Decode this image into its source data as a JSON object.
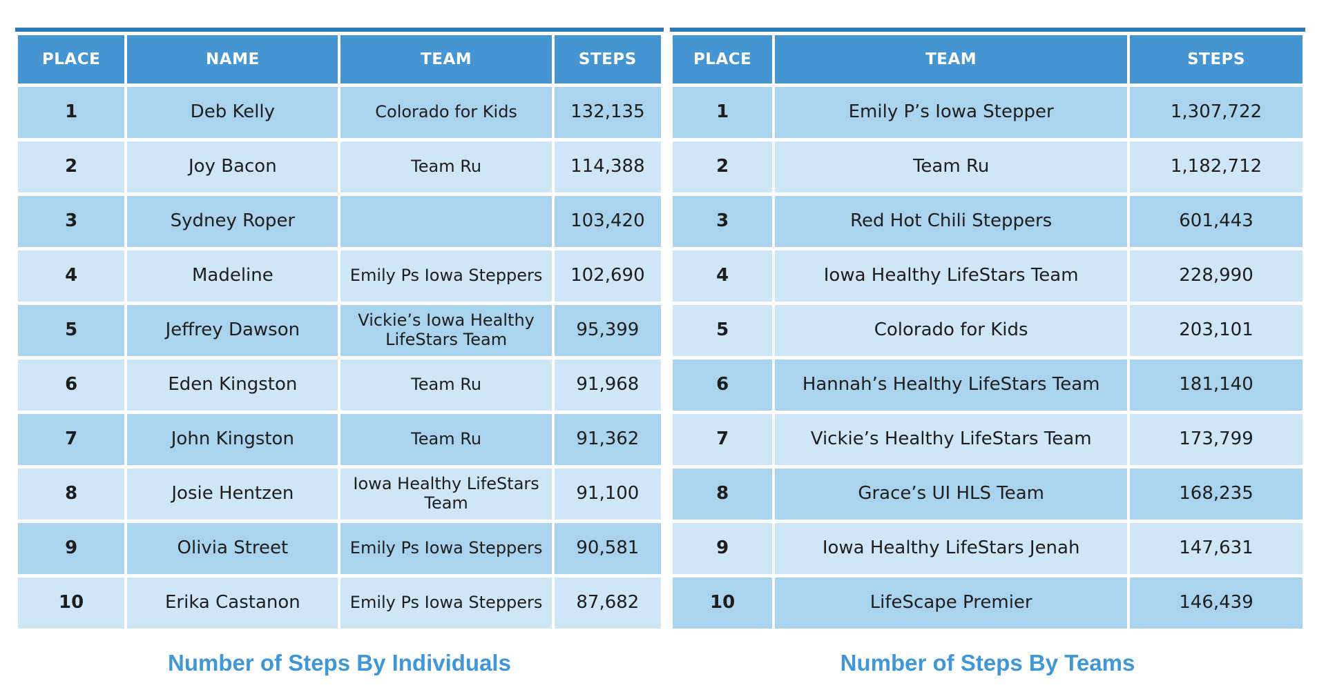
{
  "colors": {
    "header_blue": "#4495d1",
    "header_top_border": "#2d7ab4",
    "row_dark": "#aad3ed",
    "row_light": "#cfe6f6",
    "place_red": "#da3228",
    "body_text": "#1d1d1d",
    "caption_blue": "#3f97d7",
    "grid_gap": "#ffffff"
  },
  "tables": [
    {
      "id": "individuals",
      "caption": "Number of Steps By Individuals",
      "columns": [
        "PLACE",
        "NAME",
        "TEAM",
        "STEPS"
      ],
      "cell_names": [
        "place-cell",
        "name-cell",
        "team-cell",
        "steps-cell"
      ],
      "rows": [
        {
          "shade": "dark",
          "cells": [
            "1",
            "Deb Kelly",
            "Colorado for Kids",
            "132,135"
          ]
        },
        {
          "shade": "light",
          "cells": [
            "2",
            "Joy Bacon",
            "Team Ru",
            "114,388"
          ]
        },
        {
          "shade": "dark",
          "cells": [
            "3",
            "Sydney Roper",
            "",
            "103,420"
          ]
        },
        {
          "shade": "light",
          "cells": [
            "4",
            "Madeline",
            "Emily Ps Iowa Steppers",
            "102,690"
          ]
        },
        {
          "shade": "dark",
          "cells": [
            "5",
            "Jeffrey Dawson",
            "Vickie’s Iowa Healthy LifeStars Team",
            "95,399"
          ]
        },
        {
          "shade": "light",
          "cells": [
            "6",
            "Eden Kingston",
            "Team Ru",
            "91,968"
          ]
        },
        {
          "shade": "dark",
          "cells": [
            "7",
            "John Kingston",
            "Team Ru",
            "91,362"
          ]
        },
        {
          "shade": "light",
          "cells": [
            "8",
            "Josie Hentzen",
            "Iowa Healthy LifeStars Team",
            "91,100"
          ]
        },
        {
          "shade": "dark",
          "cells": [
            "9",
            "Olivia Street",
            "Emily Ps Iowa Steppers",
            "90,581"
          ]
        },
        {
          "shade": "light",
          "cells": [
            "10",
            "Erika Castanon",
            "Emily Ps Iowa Steppers",
            "87,682"
          ]
        }
      ]
    },
    {
      "id": "teams",
      "caption": "Number of Steps By Teams",
      "columns": [
        "PLACE",
        "TEAM",
        "STEPS"
      ],
      "cell_names": [
        "place-cell",
        "team-cell",
        "steps-cell"
      ],
      "rows": [
        {
          "shade": "dark",
          "cells": [
            "1",
            "Emily P’s Iowa Stepper",
            "1,307,722"
          ]
        },
        {
          "shade": "light",
          "cells": [
            "2",
            "Team Ru",
            "1,182,712"
          ]
        },
        {
          "shade": "dark",
          "cells": [
            "3",
            "Red Hot Chili Steppers",
            "601,443"
          ]
        },
        {
          "shade": "light",
          "cells": [
            "4",
            "Iowa Healthy LifeStars Team",
            "228,990"
          ]
        },
        {
          "shade": "light",
          "cells": [
            "5",
            "Colorado for Kids",
            "203,101"
          ]
        },
        {
          "shade": "dark",
          "cells": [
            "6",
            "Hannah’s Healthy LifeStars Team",
            "181,140"
          ]
        },
        {
          "shade": "light",
          "cells": [
            "7",
            "Vickie’s Healthy LifeStars Team",
            "173,799"
          ]
        },
        {
          "shade": "dark",
          "cells": [
            "8",
            "Grace’s UI HLS Team",
            "168,235"
          ]
        },
        {
          "shade": "light",
          "cells": [
            "9",
            "Iowa Healthy LifeStars Jenah",
            "147,631"
          ]
        },
        {
          "shade": "dark",
          "cells": [
            "10",
            "LifeScape Premier",
            "146,439"
          ]
        }
      ]
    }
  ],
  "chart_data": [
    {
      "type": "table",
      "title": "Number of Steps By Individuals",
      "columns": [
        "PLACE",
        "NAME",
        "TEAM",
        "STEPS"
      ],
      "rows": [
        [
          1,
          "Deb Kelly",
          "Colorado for Kids",
          132135
        ],
        [
          2,
          "Joy Bacon",
          "Team Ru",
          114388
        ],
        [
          3,
          "Sydney Roper",
          "",
          103420
        ],
        [
          4,
          "Madeline",
          "Emily Ps Iowa Steppers",
          102690
        ],
        [
          5,
          "Jeffrey Dawson",
          "Vickie’s Iowa Healthy LifeStars Team",
          95399
        ],
        [
          6,
          "Eden Kingston",
          "Team Ru",
          91968
        ],
        [
          7,
          "John Kingston",
          "Team Ru",
          91362
        ],
        [
          8,
          "Josie Hentzen",
          "Iowa Healthy LifeStars Team",
          91100
        ],
        [
          9,
          "Olivia Street",
          "Emily Ps Iowa Steppers",
          90581
        ],
        [
          10,
          "Erika Castanon",
          "Emily Ps Iowa Steppers",
          87682
        ]
      ]
    },
    {
      "type": "table",
      "title": "Number of Steps By Teams",
      "columns": [
        "PLACE",
        "TEAM",
        "STEPS"
      ],
      "rows": [
        [
          1,
          "Emily P’s Iowa Stepper",
          1307722
        ],
        [
          2,
          "Team Ru",
          1182712
        ],
        [
          3,
          "Red Hot Chili Steppers",
          601443
        ],
        [
          4,
          "Iowa Healthy LifeStars Team",
          228990
        ],
        [
          5,
          "Colorado for Kids",
          203101
        ],
        [
          6,
          "Hannah’s Healthy LifeStars Team",
          181140
        ],
        [
          7,
          "Vickie’s Healthy LifeStars Team",
          173799
        ],
        [
          8,
          "Grace’s UI HLS Team",
          168235
        ],
        [
          9,
          "Iowa Healthy LifeStars Jenah",
          147631
        ],
        [
          10,
          "LifeScape Premier",
          146439
        ]
      ]
    }
  ]
}
